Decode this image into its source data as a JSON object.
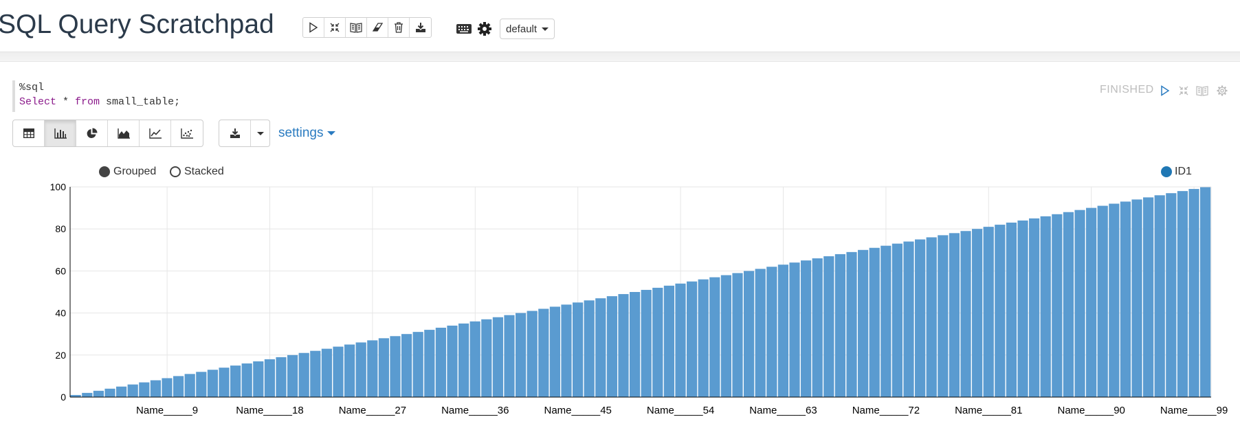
{
  "header": {
    "title": "SQL Query Scratchpad",
    "toolbar_icons": [
      "play-icon",
      "collapse-icon",
      "book-icon",
      "eraser-icon",
      "trash-icon",
      "download-icon"
    ],
    "keyboard_icon": "keyboard-icon",
    "settings_icon": "gear-icon",
    "interpreter_binding": "default"
  },
  "paragraph": {
    "code_line1": "%sql",
    "code_kw1": "Select",
    "code_mid": " * ",
    "code_kw2": "from",
    "code_rest": " small_table;",
    "status": "FINISHED",
    "viz_buttons": [
      "table-icon",
      "bar-chart-icon",
      "pie-chart-icon",
      "area-chart-icon",
      "line-chart-icon",
      "scatter-chart-icon"
    ],
    "active_viz": "bar-chart-icon",
    "settings_label": "settings"
  },
  "chart_options": {
    "grouped_label": "Grouped",
    "stacked_label": "Stacked",
    "selected": "Grouped"
  },
  "chart_data": {
    "type": "bar",
    "series": [
      {
        "name": "ID1",
        "color": "#1f77b4"
      }
    ],
    "categories_pattern": "Name_____N for N = 1..100",
    "values": [
      1,
      2,
      3,
      4,
      5,
      6,
      7,
      8,
      9,
      10,
      11,
      12,
      13,
      14,
      15,
      16,
      17,
      18,
      19,
      20,
      21,
      22,
      23,
      24,
      25,
      26,
      27,
      28,
      29,
      30,
      31,
      32,
      33,
      34,
      35,
      36,
      37,
      38,
      39,
      40,
      41,
      42,
      43,
      44,
      45,
      46,
      47,
      48,
      49,
      50,
      51,
      52,
      53,
      54,
      55,
      56,
      57,
      58,
      59,
      60,
      61,
      62,
      63,
      64,
      65,
      66,
      67,
      68,
      69,
      70,
      71,
      72,
      73,
      74,
      75,
      76,
      77,
      78,
      79,
      80,
      81,
      82,
      83,
      84,
      85,
      86,
      87,
      88,
      89,
      90,
      91,
      92,
      93,
      94,
      95,
      96,
      97,
      98,
      99,
      100
    ],
    "x_tick_labels": [
      "Name_____9",
      "Name_____18",
      "Name_____27",
      "Name_____36",
      "Name_____45",
      "Name_____54",
      "Name_____63",
      "Name_____72",
      "Name_____81",
      "Name_____90",
      "Name_____99"
    ],
    "x_tick_indices": [
      9,
      18,
      27,
      36,
      45,
      54,
      63,
      72,
      81,
      90,
      99
    ],
    "y_ticks": [
      0,
      20,
      40,
      60,
      80,
      100
    ],
    "ylim": [
      0,
      100
    ],
    "grid": true,
    "legend": "top-right",
    "bar_color": "#5a9bd0"
  }
}
